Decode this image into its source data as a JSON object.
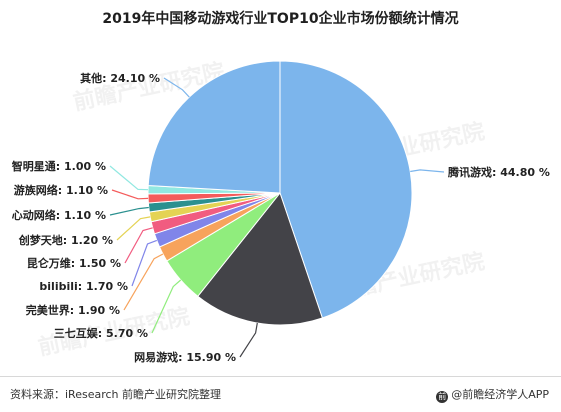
{
  "chart_data": {
    "type": "pie",
    "title": "2019年中国移动游戏行业TOP10企业市场份额统计情况",
    "slices": [
      {
        "label": "腾讯游戏",
        "value": 44.8,
        "value_label": "44.80 %",
        "color": "#7cb5ec"
      },
      {
        "label": "网易游戏",
        "value": 15.9,
        "value_label": "15.90 %",
        "color": "#434348"
      },
      {
        "label": "三七互娱",
        "value": 5.7,
        "value_label": "5.70 %",
        "color": "#90ed7d"
      },
      {
        "label": "完美世界",
        "value": 1.9,
        "value_label": "1.90 %",
        "color": "#f7a35c"
      },
      {
        "label": "bilibili",
        "value": 1.7,
        "value_label": "1.70 %",
        "color": "#8085e9"
      },
      {
        "label": "昆仑万维",
        "value": 1.5,
        "value_label": "1.50 %",
        "color": "#f15c80"
      },
      {
        "label": "创梦天地",
        "value": 1.2,
        "value_label": "1.20 %",
        "color": "#e4d354"
      },
      {
        "label": "心动网络",
        "value": 1.1,
        "value_label": "1.10 %",
        "color": "#2b908f"
      },
      {
        "label": "游族网络",
        "value": 1.1,
        "value_label": "1.10 %",
        "color": "#f45b5b"
      },
      {
        "label": "智明星通",
        "value": 1.0,
        "value_label": "1.00 %",
        "color": "#91e8e1"
      },
      {
        "label": "其他",
        "value": 24.1,
        "value_label": "24.10 %",
        "color": "#7cb5ec"
      }
    ],
    "legend": "none"
  },
  "footer": {
    "source": "资料来源：iResearch 前瞻产业研究院整理",
    "brand": "@前瞻经济学人APP"
  },
  "watermark": {
    "text": "前瞻产业研究院"
  }
}
